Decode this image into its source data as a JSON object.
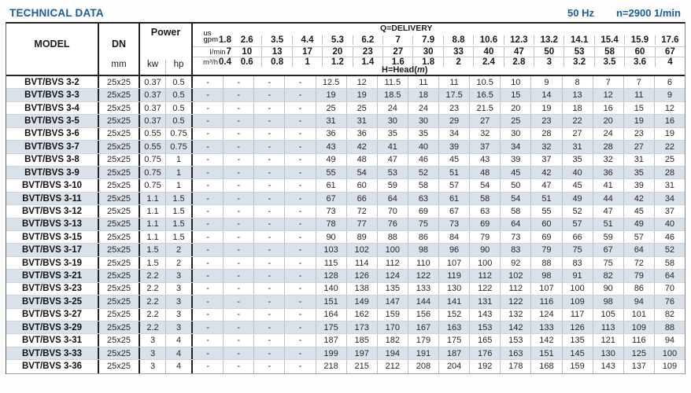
{
  "page": {
    "title": "TECHNICAL DATA",
    "frequency": "50 Hz",
    "speed": "n=2900 1/min"
  },
  "colors": {
    "accent_blue": "#1b5c9c",
    "row_stripe": "#d9e1ea",
    "grid_dark": "#222222",
    "grid_light": "#b9c0c8"
  },
  "table": {
    "model_header": "MODEL",
    "dn_header": "DN",
    "dn_unit": "mm",
    "power_header": "Power",
    "kw_unit": "kw",
    "hp_unit": "hp",
    "delivery_label": "Q=DELIVERY",
    "head_label_prefix": "H=Head(",
    "head_label_m": "m",
    "head_label_suffix": ")",
    "units": {
      "gpm_small": "us",
      "gpm": "gpm",
      "lmin": "l/min",
      "m3h": "m³/h"
    },
    "gpm_values": [
      "1.8",
      "2.6",
      "3.5",
      "4.4",
      "5.3",
      "6.2",
      "7",
      "7.9",
      "8.8",
      "10.6",
      "12.3",
      "13.2",
      "14.1",
      "15.4",
      "15.9",
      "17.6"
    ],
    "lmin_values": [
      "7",
      "10",
      "13",
      "17",
      "20",
      "23",
      "27",
      "30",
      "33",
      "40",
      "47",
      "50",
      "53",
      "58",
      "60",
      "67"
    ],
    "m3h_values": [
      "0.4",
      "0.6",
      "0.8",
      "1",
      "1.2",
      "1.4",
      "1.6",
      "1.8",
      "2",
      "2.4",
      "2.8",
      "3",
      "3.2",
      "3.5",
      "3.6",
      "4"
    ],
    "rows": [
      {
        "model": "BVT/BVS 3-2",
        "dn": "25x25",
        "kw": "0.37",
        "hp": "0.5",
        "head": [
          "-",
          "-",
          "-",
          "-",
          "12.5",
          "12",
          "11.5",
          "11",
          "11",
          "10.5",
          "10",
          "9",
          "8",
          "7",
          "7",
          "6"
        ]
      },
      {
        "model": "BVT/BVS 3-3",
        "dn": "25x25",
        "kw": "0.37",
        "hp": "0.5",
        "head": [
          "-",
          "-",
          "-",
          "-",
          "19",
          "19",
          "18.5",
          "18",
          "17.5",
          "16.5",
          "15",
          "14",
          "13",
          "12",
          "11",
          "9"
        ]
      },
      {
        "model": "BVT/BVS 3-4",
        "dn": "25x25",
        "kw": "0.37",
        "hp": "0.5",
        "head": [
          "-",
          "-",
          "-",
          "-",
          "25",
          "25",
          "24",
          "24",
          "23",
          "21.5",
          "20",
          "19",
          "18",
          "16",
          "15",
          "12"
        ]
      },
      {
        "model": "BVT/BVS 3-5",
        "dn": "25x25",
        "kw": "0.37",
        "hp": "0.5",
        "head": [
          "-",
          "-",
          "-",
          "-",
          "31",
          "31",
          "30",
          "30",
          "29",
          "27",
          "25",
          "23",
          "22",
          "20",
          "19",
          "16"
        ]
      },
      {
        "model": "BVT/BVS 3-6",
        "dn": "25x25",
        "kw": "0.55",
        "hp": "0.75",
        "head": [
          "-",
          "-",
          "-",
          "-",
          "36",
          "36",
          "35",
          "35",
          "34",
          "32",
          "30",
          "28",
          "27",
          "24",
          "23",
          "19"
        ]
      },
      {
        "model": "BVT/BVS 3-7",
        "dn": "25x25",
        "kw": "0.55",
        "hp": "0.75",
        "head": [
          "-",
          "-",
          "-",
          "-",
          "43",
          "42",
          "41",
          "40",
          "39",
          "37",
          "34",
          "32",
          "31",
          "28",
          "27",
          "22"
        ]
      },
      {
        "model": "BVT/BVS 3-8",
        "dn": "25x25",
        "kw": "0.75",
        "hp": "1",
        "head": [
          "-",
          "-",
          "-",
          "-",
          "49",
          "48",
          "47",
          "46",
          "45",
          "43",
          "39",
          "37",
          "35",
          "32",
          "31",
          "25"
        ]
      },
      {
        "model": "BVT/BVS 3-9",
        "dn": "25x25",
        "kw": "0.75",
        "hp": "1",
        "head": [
          "-",
          "-",
          "-",
          "-",
          "55",
          "54",
          "53",
          "52",
          "51",
          "48",
          "45",
          "42",
          "40",
          "36",
          "35",
          "28"
        ]
      },
      {
        "model": "BVT/BVS 3-10",
        "dn": "25x25",
        "kw": "0.75",
        "hp": "1",
        "head": [
          "-",
          "-",
          "-",
          "-",
          "61",
          "60",
          "59",
          "58",
          "57",
          "54",
          "50",
          "47",
          "45",
          "41",
          "39",
          "31"
        ]
      },
      {
        "model": "BVT/BVS 3-11",
        "dn": "25x25",
        "kw": "1.1",
        "hp": "1.5",
        "head": [
          "-",
          "-",
          "-",
          "-",
          "67",
          "66",
          "64",
          "63",
          "61",
          "58",
          "54",
          "51",
          "49",
          "44",
          "42",
          "34"
        ]
      },
      {
        "model": "BVT/BVS 3-12",
        "dn": "25x25",
        "kw": "1.1",
        "hp": "1.5",
        "head": [
          "-",
          "-",
          "-",
          "-",
          "73",
          "72",
          "70",
          "69",
          "67",
          "63",
          "58",
          "55",
          "52",
          "47",
          "45",
          "37"
        ]
      },
      {
        "model": "BVT/BVS 3-13",
        "dn": "25x25",
        "kw": "1.1",
        "hp": "1.5",
        "head": [
          "-",
          "-",
          "-",
          "-",
          "78",
          "77",
          "76",
          "75",
          "73",
          "69",
          "64",
          "60",
          "57",
          "51",
          "49",
          "40"
        ]
      },
      {
        "model": "BVT/BVS 3-15",
        "dn": "25x25",
        "kw": "1.1",
        "hp": "1.5",
        "head": [
          "-",
          "-",
          "-",
          "-",
          "90",
          "89",
          "88",
          "86",
          "84",
          "79",
          "73",
          "69",
          "66",
          "59",
          "57",
          "46"
        ]
      },
      {
        "model": "BVT/BVS 3-17",
        "dn": "25x25",
        "kw": "1.5",
        "hp": "2",
        "head": [
          "-",
          "-",
          "-",
          "-",
          "103",
          "102",
          "100",
          "98",
          "96",
          "90",
          "83",
          "79",
          "75",
          "67",
          "64",
          "52"
        ]
      },
      {
        "model": "BVT/BVS 3-19",
        "dn": "25x25",
        "kw": "1.5",
        "hp": "2",
        "head": [
          "-",
          "-",
          "-",
          "-",
          "115",
          "114",
          "112",
          "110",
          "107",
          "100",
          "92",
          "88",
          "83",
          "75",
          "72",
          "58"
        ]
      },
      {
        "model": "BVT/BVS 3-21",
        "dn": "25x25",
        "kw": "2.2",
        "hp": "3",
        "head": [
          "-",
          "-",
          "-",
          "-",
          "128",
          "126",
          "124",
          "122",
          "119",
          "112",
          "102",
          "98",
          "91",
          "82",
          "79",
          "64"
        ]
      },
      {
        "model": "BVT/BVS 3-23",
        "dn": "25x25",
        "kw": "2.2",
        "hp": "3",
        "head": [
          "-",
          "-",
          "-",
          "-",
          "140",
          "138",
          "135",
          "133",
          "130",
          "122",
          "112",
          "107",
          "100",
          "90",
          "86",
          "70"
        ]
      },
      {
        "model": "BVT/BVS 3-25",
        "dn": "25x25",
        "kw": "2.2",
        "hp": "3",
        "head": [
          "-",
          "-",
          "-",
          "-",
          "151",
          "149",
          "147",
          "144",
          "141",
          "131",
          "122",
          "116",
          "109",
          "98",
          "94",
          "76"
        ]
      },
      {
        "model": "BVT/BVS 3-27",
        "dn": "25x25",
        "kw": "2.2",
        "hp": "3",
        "head": [
          "-",
          "-",
          "-",
          "-",
          "164",
          "162",
          "159",
          "156",
          "152",
          "143",
          "132",
          "124",
          "117",
          "105",
          "101",
          "82"
        ]
      },
      {
        "model": "BVT/BVS 3-29",
        "dn": "25x25",
        "kw": "2.2",
        "hp": "3",
        "head": [
          "-",
          "-",
          "-",
          "-",
          "175",
          "173",
          "170",
          "167",
          "163",
          "153",
          "142",
          "133",
          "126",
          "113",
          "109",
          "88"
        ]
      },
      {
        "model": "BVT/BVS 3-31",
        "dn": "25x25",
        "kw": "3",
        "hp": "4",
        "head": [
          "-",
          "-",
          "-",
          "-",
          "187",
          "185",
          "182",
          "179",
          "175",
          "165",
          "153",
          "142",
          "135",
          "121",
          "116",
          "94"
        ]
      },
      {
        "model": "BVT/BVS 3-33",
        "dn": "25x25",
        "kw": "3",
        "hp": "4",
        "head": [
          "-",
          "-",
          "-",
          "-",
          "199",
          "197",
          "194",
          "191",
          "187",
          "176",
          "163",
          "151",
          "145",
          "130",
          "125",
          "100"
        ]
      },
      {
        "model": "BVT/BVS 3-36",
        "dn": "25x25",
        "kw": "3",
        "hp": "4",
        "head": [
          "-",
          "-",
          "-",
          "-",
          "218",
          "215",
          "212",
          "208",
          "204",
          "192",
          "178",
          "168",
          "159",
          "143",
          "137",
          "109"
        ]
      }
    ]
  }
}
